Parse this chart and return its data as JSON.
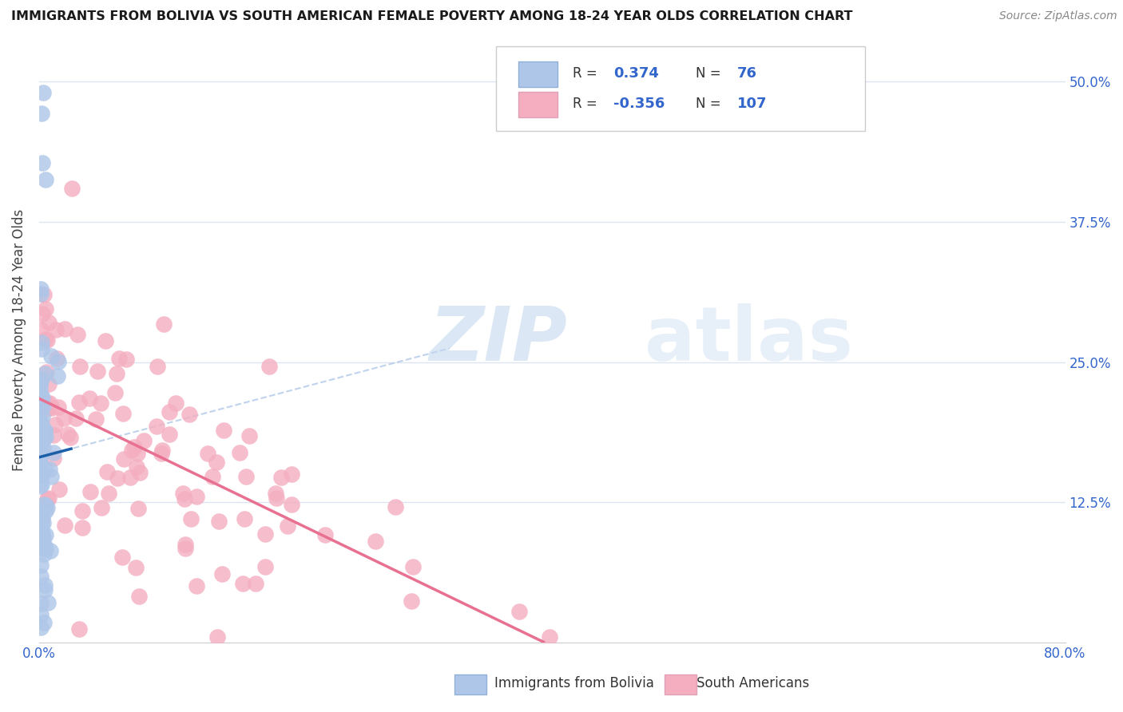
{
  "title": "IMMIGRANTS FROM BOLIVIA VS SOUTH AMERICAN FEMALE POVERTY AMONG 18-24 YEAR OLDS CORRELATION CHART",
  "source": "Source: ZipAtlas.com",
  "ylabel": "Female Poverty Among 18-24 Year Olds",
  "xlim": [
    0.0,
    0.8
  ],
  "ylim": [
    0.0,
    0.54
  ],
  "legend_blue_R": "0.374",
  "legend_blue_N": "76",
  "legend_pink_R": "-0.356",
  "legend_pink_N": "107",
  "blue_color": "#aec6e8",
  "pink_color": "#f4aec0",
  "blue_line_color": "#1a5fa8",
  "pink_line_color": "#e87090",
  "dashed_line_color": "#b0c8e8",
  "watermark_zip": "ZIP",
  "watermark_atlas": "atlas",
  "background_color": "#ffffff",
  "grid_color": "#dde5f0",
  "ytick_vals": [
    0.125,
    0.25,
    0.375,
    0.5
  ],
  "ytick_labels": [
    "12.5%",
    "25.0%",
    "37.5%",
    "50.0%"
  ],
  "legend_color": "#3366cc"
}
